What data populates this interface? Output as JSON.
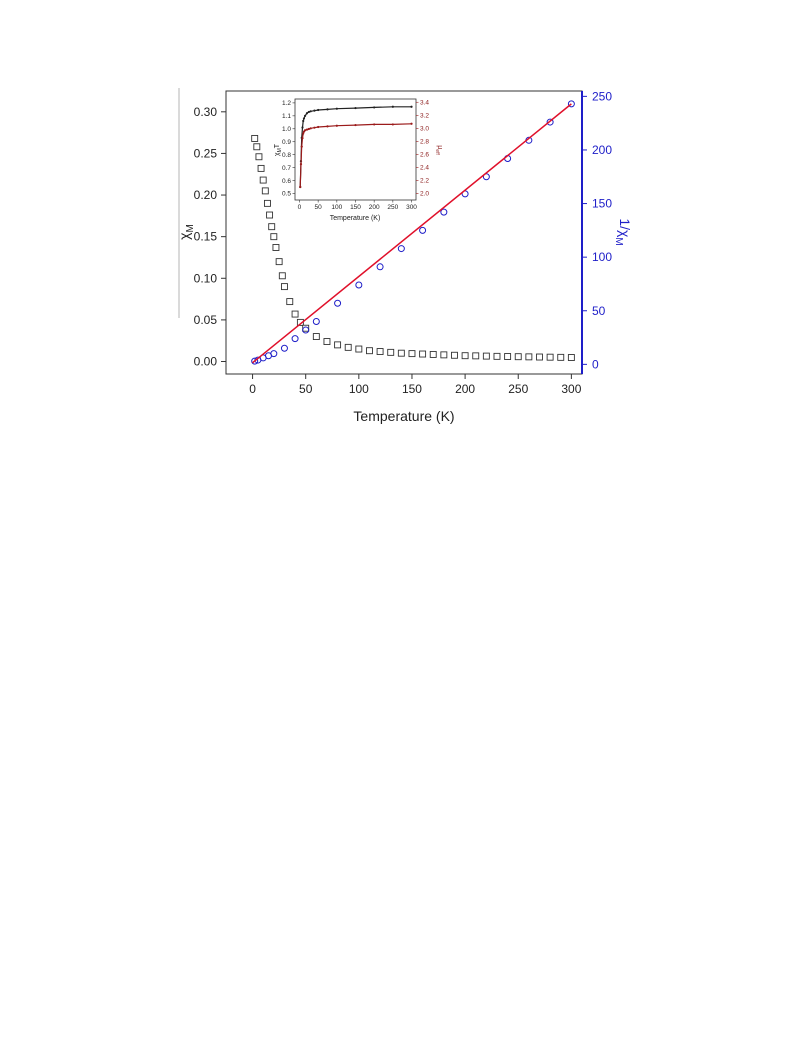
{
  "chart_data": {
    "main": {
      "type": "scatter",
      "xlabel": "Temperature (K)",
      "ylabel_left": "χ",
      "ylabel_left_sub": "M",
      "ylabel_right": "1/χ",
      "ylabel_right_sub": "M",
      "xlim": [
        -25,
        310
      ],
      "ylim_left": [
        -0.015,
        0.325
      ],
      "ylim_right": [
        -9,
        255
      ],
      "x_ticks": [
        "0",
        "50",
        "100",
        "150",
        "200",
        "250",
        "300"
      ],
      "y_left_ticks": [
        "0.00",
        "0.05",
        "0.10",
        "0.15",
        "0.20",
        "0.25",
        "0.30"
      ],
      "y_right_ticks": [
        "0",
        "50",
        "100",
        "150",
        "200",
        "250"
      ],
      "colors": {
        "chi": "#333333",
        "inv_chi": "#1e1ec8",
        "fit": "#e0102a"
      },
      "series": [
        {
          "marker": "open-square",
          "axis": "left",
          "x": [
            2,
            4,
            6,
            8,
            10,
            12,
            14,
            16,
            18,
            20,
            22,
            25,
            28,
            30,
            35,
            40,
            45,
            50,
            60,
            70,
            80,
            90,
            100,
            110,
            120,
            130,
            140,
            150,
            160,
            170,
            180,
            190,
            200,
            210,
            220,
            230,
            240,
            250,
            260,
            270,
            280,
            290,
            300
          ],
          "values": [
            0.268,
            0.258,
            0.246,
            0.232,
            0.218,
            0.205,
            0.19,
            0.176,
            0.162,
            0.15,
            0.137,
            0.12,
            0.103,
            0.09,
            0.072,
            0.057,
            0.047,
            0.04,
            0.03,
            0.024,
            0.02,
            0.017,
            0.015,
            0.013,
            0.012,
            0.011,
            0.01,
            0.0095,
            0.009,
            0.0085,
            0.008,
            0.0075,
            0.007,
            0.0068,
            0.0065,
            0.0062,
            0.006,
            0.0058,
            0.0056,
            0.0054,
            0.0052,
            0.005,
            0.0048
          ]
        },
        {
          "marker": "open-circle",
          "axis": "right",
          "x": [
            2,
            5,
            10,
            15,
            20,
            30,
            40,
            50,
            60,
            80,
            100,
            120,
            140,
            160,
            180,
            200,
            220,
            240,
            260,
            280,
            300
          ],
          "values": [
            3,
            4,
            6,
            8,
            10,
            15,
            24,
            32,
            40,
            57,
            74,
            91,
            108,
            125,
            142,
            159,
            175,
            192,
            209,
            226,
            243
          ]
        },
        {
          "marker": "line",
          "axis": "right",
          "x": [
            0,
            300
          ],
          "values": [
            1.5,
            243
          ]
        }
      ]
    },
    "inset": {
      "type": "scatter",
      "xlabel": "Temperature (K)",
      "ylabel_left": "χ",
      "ylabel_left_sub": "M",
      "ylabel_left_suffix": "T",
      "ylabel_right": "μ",
      "ylabel_right_sub": "eff",
      "xlim": [
        -12,
        312
      ],
      "ylim_left": [
        0.45,
        1.23
      ],
      "ylim_right": [
        1.9,
        3.45
      ],
      "x_ticks": [
        "0",
        "50",
        "100",
        "150",
        "200",
        "250",
        "300"
      ],
      "y_left_ticks": [
        "0.5",
        "0.6",
        "0.7",
        "0.8",
        "0.9",
        "1.0",
        "1.1",
        "1.2"
      ],
      "y_right_ticks": [
        "2.0",
        "2.2",
        "2.4",
        "2.6",
        "2.8",
        "3.0",
        "3.2",
        "3.4"
      ],
      "colors": {
        "chiT": "#222222",
        "mu": "#9b1b1b"
      },
      "series": [
        {
          "marker": "dot",
          "axis": "left",
          "x": [
            2,
            4,
            6,
            8,
            10,
            12,
            15,
            20,
            25,
            30,
            40,
            50,
            75,
            100,
            150,
            200,
            250,
            300
          ],
          "values": [
            0.55,
            0.75,
            0.93,
            1.01,
            1.06,
            1.08,
            1.1,
            1.12,
            1.13,
            1.135,
            1.14,
            1.145,
            1.15,
            1.155,
            1.16,
            1.165,
            1.17,
            1.17
          ]
        },
        {
          "marker": "dot",
          "axis": "right",
          "x": [
            2,
            4,
            6,
            8,
            10,
            12,
            15,
            20,
            25,
            30,
            40,
            50,
            75,
            100,
            150,
            200,
            250,
            300
          ],
          "values": [
            2.1,
            2.45,
            2.72,
            2.85,
            2.92,
            2.95,
            2.97,
            2.98,
            2.99,
            3.0,
            3.01,
            3.02,
            3.03,
            3.04,
            3.05,
            3.06,
            3.06,
            3.07
          ]
        }
      ]
    }
  }
}
